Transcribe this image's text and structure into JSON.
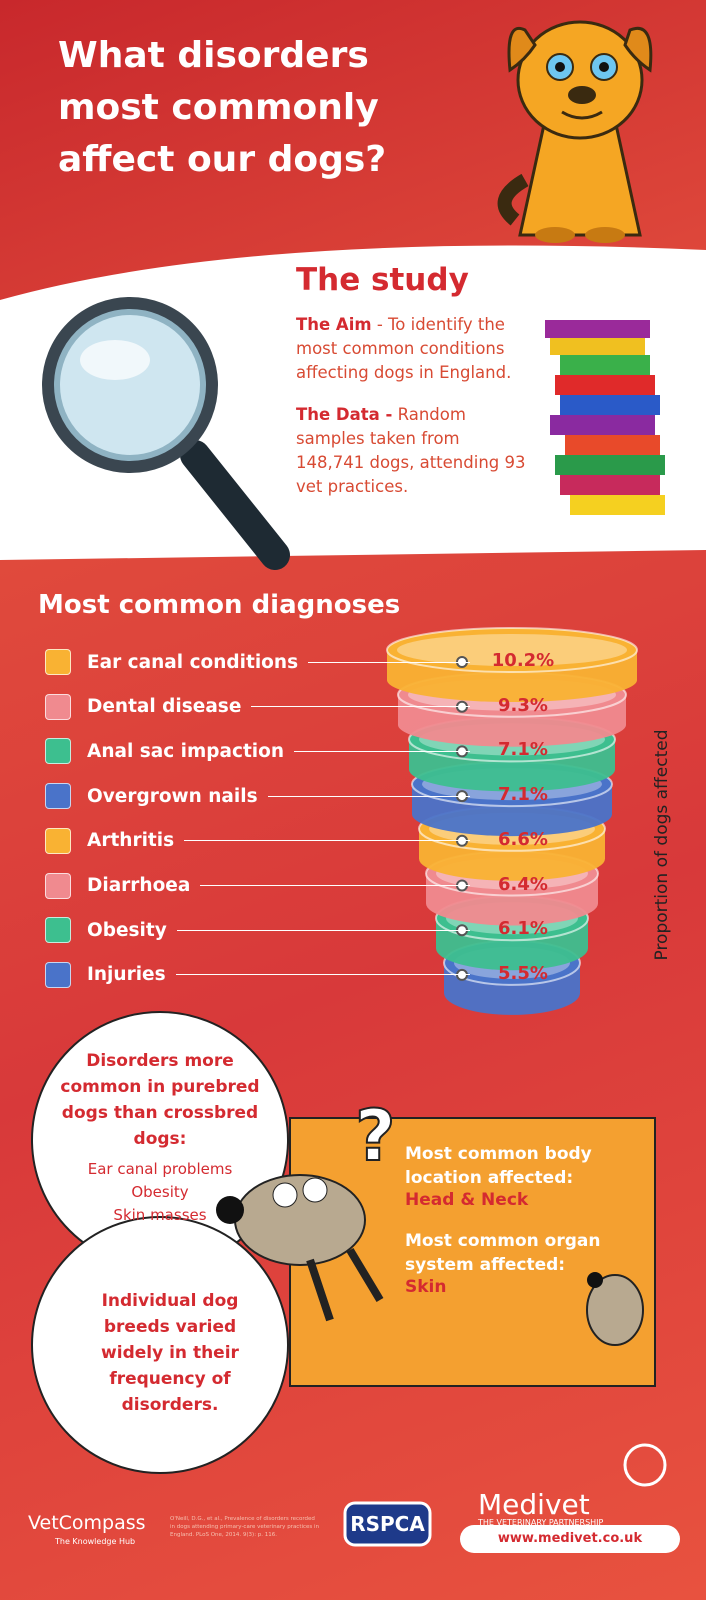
{
  "header": {
    "title": "What disorders most commonly affect our dogs?"
  },
  "study": {
    "heading": "The study",
    "aim_label": "The Aim",
    "aim_text": "- To identify the most common conditions affecting dogs in England.",
    "data_label": "The Data -",
    "data_text": "Random samples taken from 148,741 dogs, attending 93 vet practices."
  },
  "diagnoses": {
    "heading": "Most common diagnoses",
    "axis_label": "Proportion of dogs affected",
    "items": [
      {
        "name": "Ear canal conditions",
        "percent": "10.2%",
        "color": "#f9b233"
      },
      {
        "name": "Dental disease",
        "percent": "9.3%",
        "color": "#f08a8f"
      },
      {
        "name": "Anal sac impaction",
        "percent": "7.1%",
        "color": "#3dbf8f"
      },
      {
        "name": "Overgrown nails",
        "percent": "7.1%",
        "color": "#4a73c9"
      },
      {
        "name": "Arthritis",
        "percent": "6.6%",
        "color": "#f9b233"
      },
      {
        "name": "Diarrhoea",
        "percent": "6.4%",
        "color": "#f08a8f"
      },
      {
        "name": "Obesity",
        "percent": "6.1%",
        "color": "#3dbf8f"
      },
      {
        "name": "Injuries",
        "percent": "5.5%",
        "color": "#4a73c9"
      }
    ]
  },
  "purebred": {
    "heading": "Disorders more common in purebred dogs than crossbred dogs:",
    "items": [
      "Ear canal problems",
      "Obesity",
      "Skin masses"
    ]
  },
  "breeds": {
    "text": "Individual dog breeds varied widely in their frequency of disorders."
  },
  "location": {
    "body_heading": "Most common body location affected:",
    "body_value": "Head & Neck",
    "organ_heading": "Most common organ system affected:",
    "organ_value": "Skin"
  },
  "footer": {
    "vetcompass": "VetCompass",
    "vetcompass_sub": "The Knowledge Hub",
    "citation": "O'Neill, D.G., et al., Prevalence of disorders recorded in dogs attending primary-care veterinary practices in England. PLoS One, 2014. 9(3): p. 116.",
    "rspca": "RSPCA",
    "medivet": "Medivet",
    "medivet_sub": "THE VETERINARY PARTNERSHIP",
    "url": "www.medivet.co.uk"
  }
}
